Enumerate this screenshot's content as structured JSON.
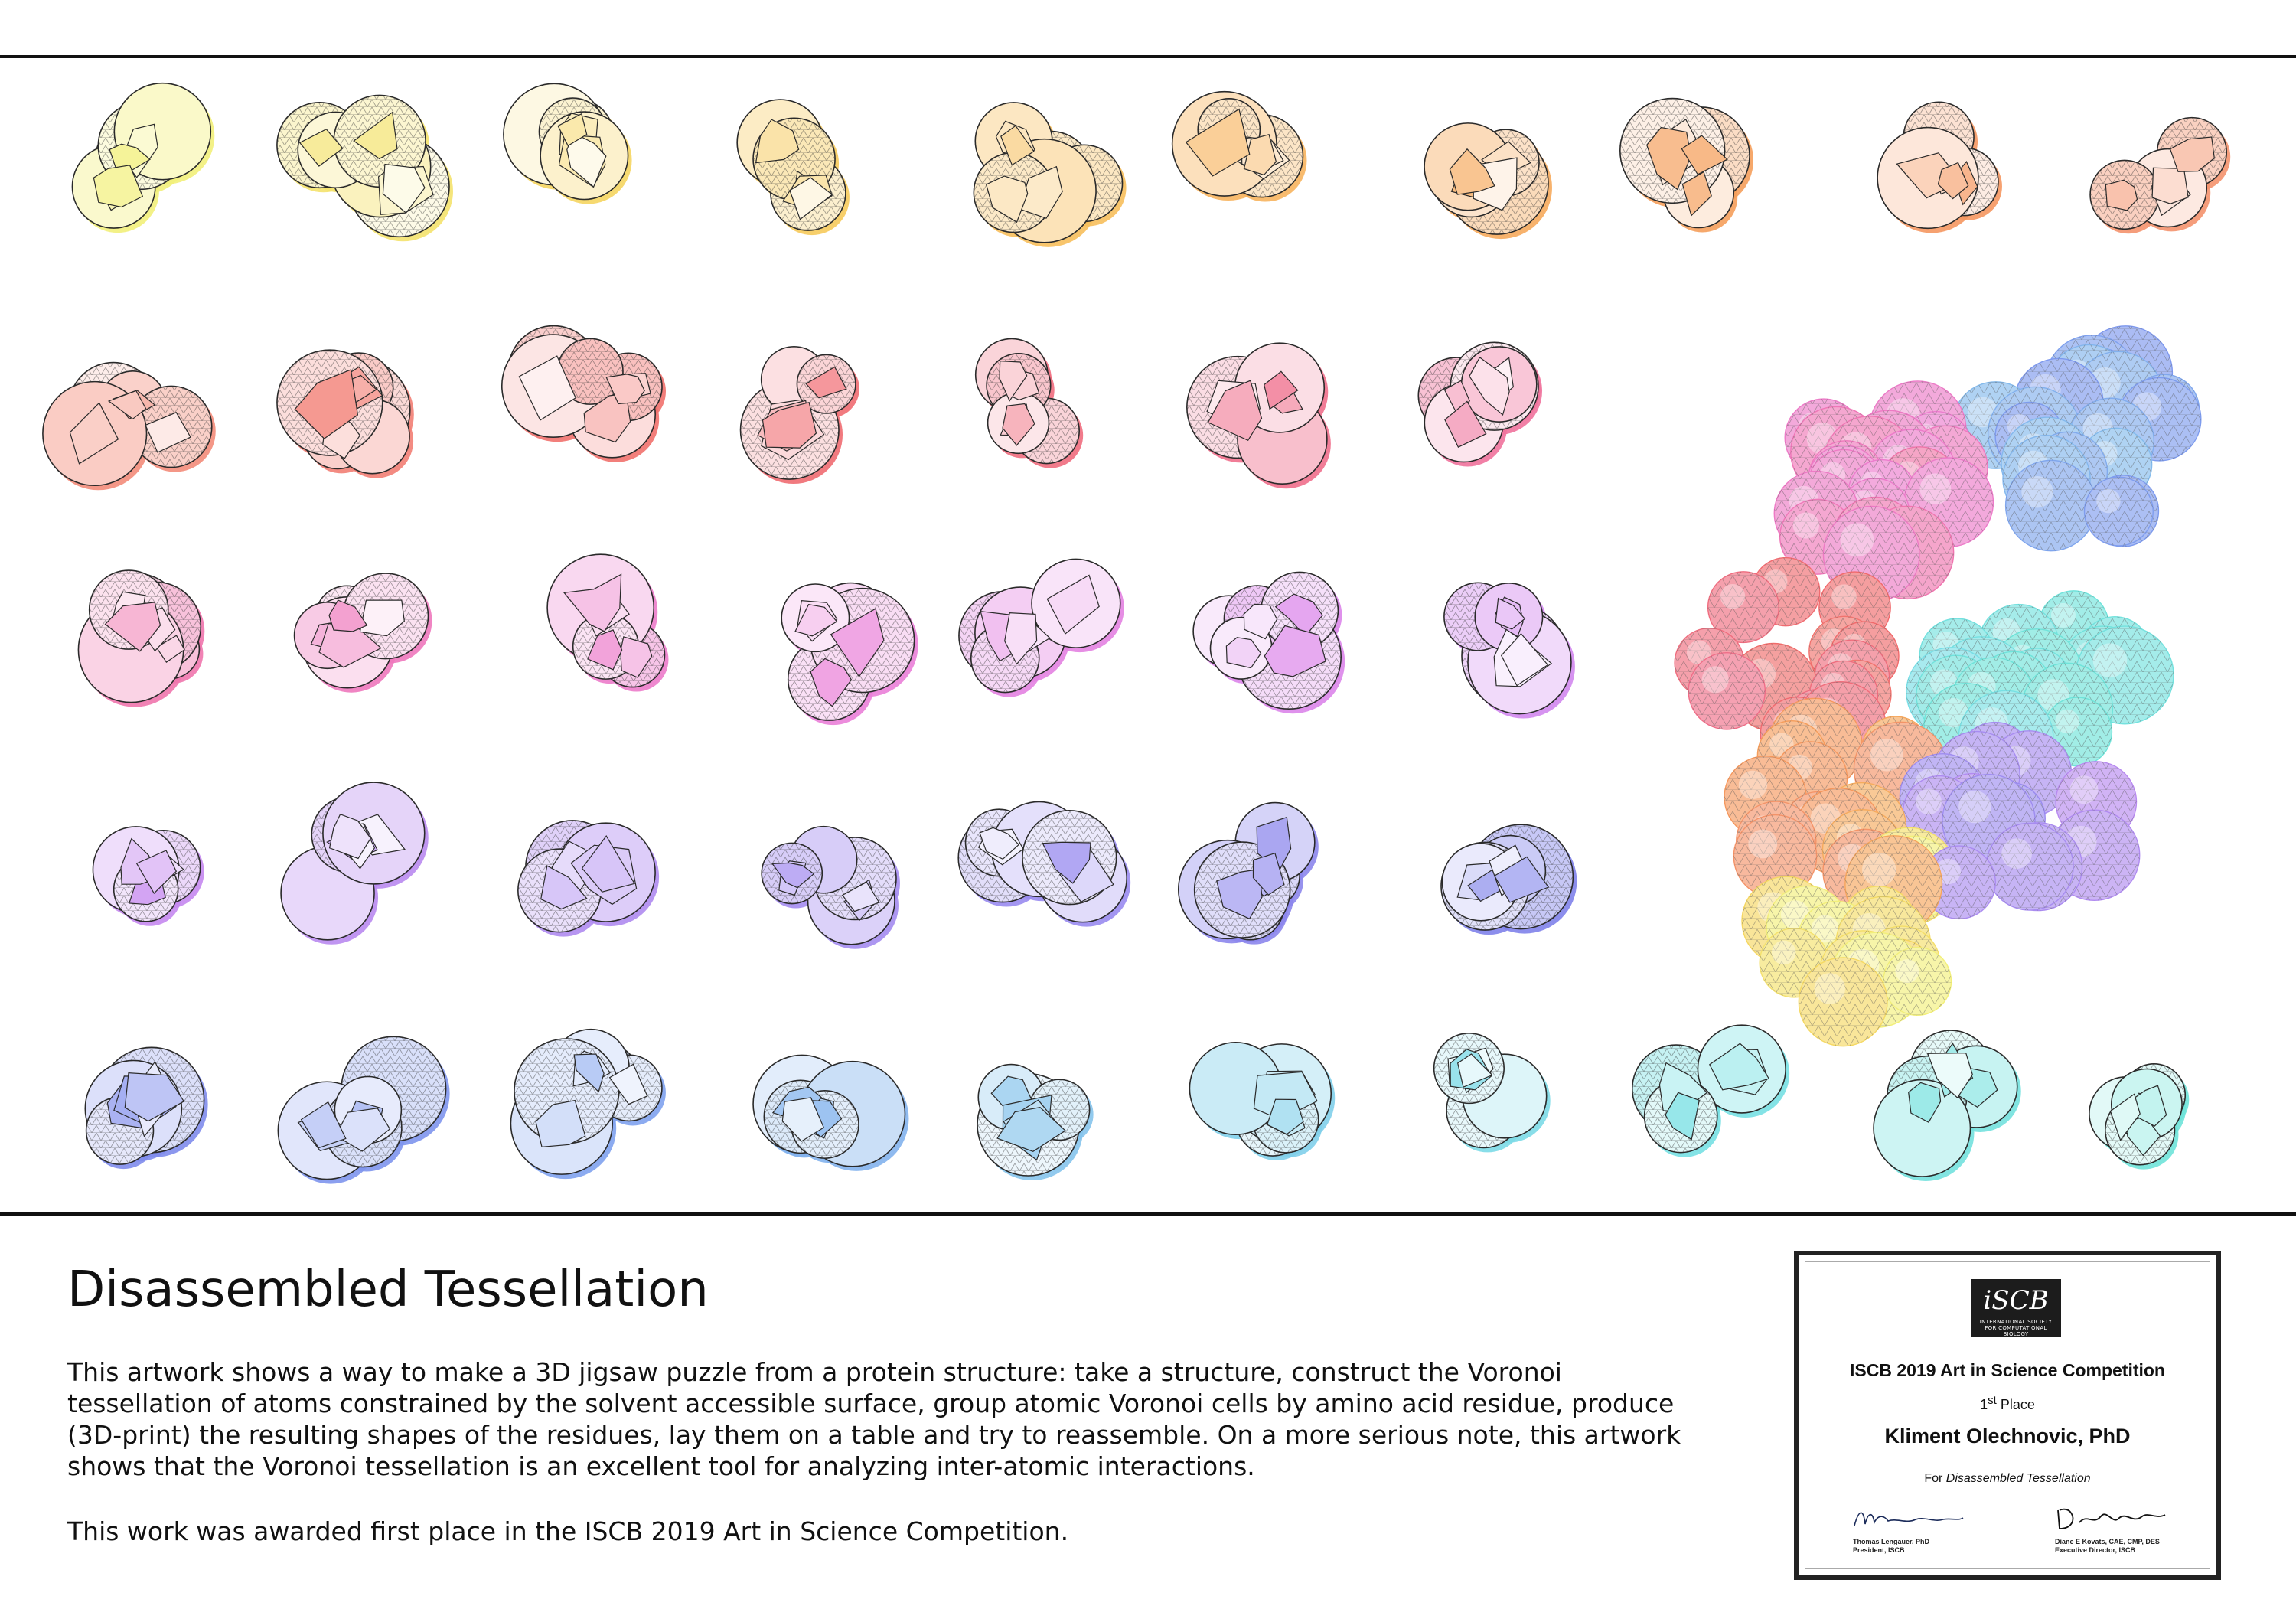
{
  "artwork": {
    "title": "Disassembled Tessellation",
    "description": "This artwork shows a way to make a 3D jigsaw puzzle from a protein structure: take a structure, construct the Voronoi tessellation of atoms constrained by the solvent accessible surface, group atomic Voronoi cells by amino acid residue, produce (3D-print) the resulting shapes of the residues, lay them on a table and try to reassemble. On a more serious note, this artwork shows that the Voronoi tessellation is an excellent tool for analyzing inter-atomic interactions.",
    "award_note": "This work was awarded first place in the ISCB 2019 Art in Science Competition."
  },
  "colors": {
    "residue_gradient": [
      "#f2ef7a",
      "#f6cf5a",
      "#f7b45e",
      "#f59a5a",
      "#f38c7a",
      "#f06a6a",
      "#ef6f8c",
      "#ef76b5",
      "#ea7fd8",
      "#d886ee",
      "#b98af0",
      "#9f8df0",
      "#7f82ea",
      "#7e9aee",
      "#86c4ec",
      "#79dfe6",
      "#6fe3d9"
    ],
    "outline": "#2a2a2a",
    "assembled_mesh": "#444444"
  },
  "certificate": {
    "logo_text": "iSCB",
    "logo_subtext": "INTERNATIONAL SOCIETY FOR COMPUTATIONAL BIOLOGY",
    "competition": "ISCB 2019 Art in Science Competition",
    "place_number": "1",
    "place_suffix": "st",
    "place_word": "Place",
    "recipient": "Kliment Olechnovic, PhD",
    "for_label": "For",
    "work_title": "Disassembled Tessellation",
    "signer_left_name": "Thomas Lengauer, PhD",
    "signer_left_role": "President, ISCB",
    "signer_right_name": "Diane E Kovats, CAE, CMP, DES",
    "signer_right_role": "Executive Director, ISCB"
  }
}
